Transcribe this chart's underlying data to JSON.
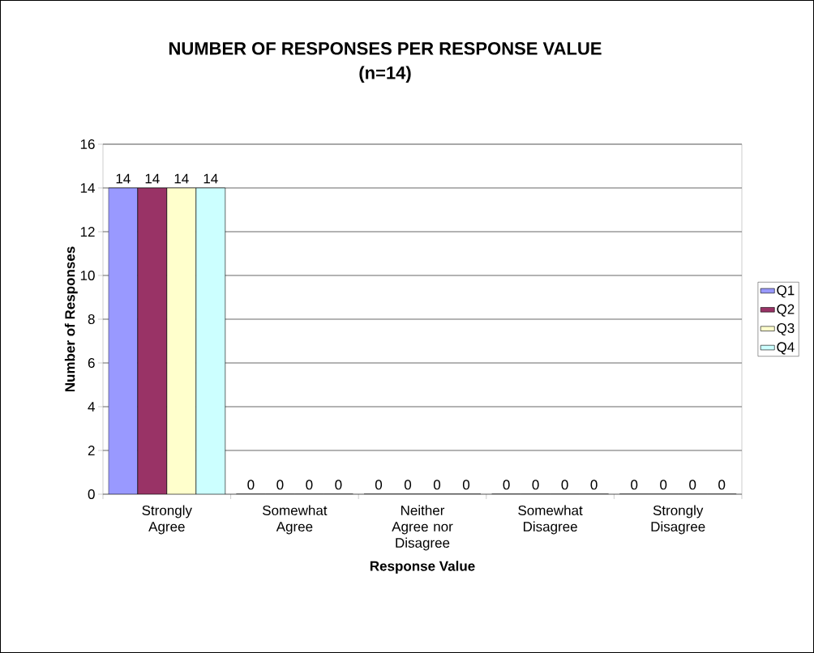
{
  "chart_data": {
    "type": "bar",
    "title": "NUMBER OF RESPONSES PER RESPONSE VALUE",
    "subtitle": "(n=14)",
    "xlabel": "Response Value",
    "ylabel": "Number of Responses",
    "categories": [
      "Strongly Agree",
      "Somewhat Agree",
      "Neither Agree nor Disagree",
      "Somewhat Disagree",
      "Strongly Disagree"
    ],
    "series": [
      {
        "name": "Q1",
        "color": "#9999ff",
        "values": [
          14,
          0,
          0,
          0,
          0
        ]
      },
      {
        "name": "Q2",
        "color": "#993366",
        "values": [
          14,
          0,
          0,
          0,
          0
        ]
      },
      {
        "name": "Q3",
        "color": "#ffffcc",
        "values": [
          14,
          0,
          0,
          0,
          0
        ]
      },
      {
        "name": "Q4",
        "color": "#ccffff",
        "values": [
          14,
          0,
          0,
          0,
          0
        ]
      }
    ],
    "ylim": [
      0,
      16
    ],
    "yticks": [
      0,
      2,
      4,
      6,
      8,
      10,
      12,
      14,
      16
    ],
    "grid": "y",
    "legend": "right",
    "data_labels": true
  }
}
